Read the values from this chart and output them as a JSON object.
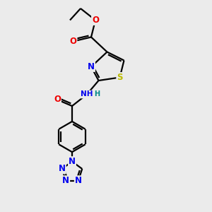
{
  "bg_color": "#ebebeb",
  "bond_color": "#000000",
  "bond_lw": 1.6,
  "atom_colors": {
    "N": "#0000ee",
    "O": "#ee0000",
    "S": "#bbbb00",
    "H": "#008888"
  },
  "font_size": 8.5,
  "font_size_small": 7.5
}
